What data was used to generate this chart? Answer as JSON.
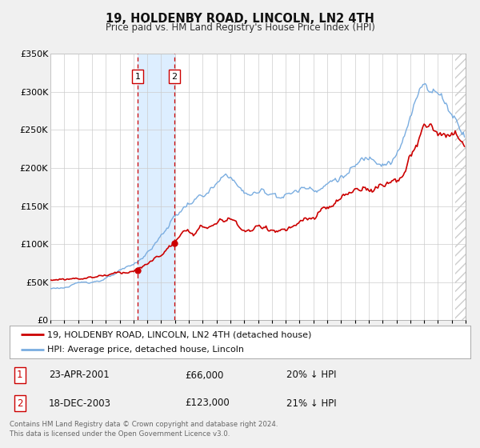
{
  "title": "19, HOLDENBY ROAD, LINCOLN, LN2 4TH",
  "subtitle": "Price paid vs. HM Land Registry's House Price Index (HPI)",
  "legend_line1": "19, HOLDENBY ROAD, LINCOLN, LN2 4TH (detached house)",
  "legend_line2": "HPI: Average price, detached house, Lincoln",
  "transaction1_date": "23-APR-2001",
  "transaction1_price": "£66,000",
  "transaction1_hpi": "20% ↓ HPI",
  "transaction1_year": 2001.3,
  "transaction1_value": 66000,
  "transaction2_date": "18-DEC-2003",
  "transaction2_price": "£123,000",
  "transaction2_hpi": "21% ↓ HPI",
  "transaction2_year": 2003.96,
  "transaction2_value": 123000,
  "footer_line1": "Contains HM Land Registry data © Crown copyright and database right 2024.",
  "footer_line2": "This data is licensed under the Open Government Licence v3.0.",
  "price_line_color": "#cc0000",
  "hpi_line_color": "#7aade0",
  "shade_color": "#ddeeff",
  "vline_color": "#cc0000",
  "point_color": "#cc0000",
  "background_color": "#f0f0f0",
  "plot_bg_color": "#ffffff",
  "grid_color": "#cccccc",
  "hatch_color": "#cccccc",
  "ylim": [
    0,
    350000
  ],
  "xlim_start": 1995,
  "xlim_end": 2025,
  "hatch_start": 2024.25,
  "yticks": [
    0,
    50000,
    100000,
    150000,
    200000,
    250000,
    300000,
    350000
  ],
  "ytick_labels": [
    "£0",
    "£50K",
    "£100K",
    "£150K",
    "£200K",
    "£250K",
    "£300K",
    "£350K"
  ],
  "xticks": [
    1995,
    1996,
    1997,
    1998,
    1999,
    2000,
    2001,
    2002,
    2003,
    2004,
    2005,
    2006,
    2007,
    2008,
    2009,
    2010,
    2011,
    2012,
    2013,
    2014,
    2015,
    2016,
    2017,
    2018,
    2019,
    2020,
    2021,
    2022,
    2023,
    2024,
    2025
  ]
}
